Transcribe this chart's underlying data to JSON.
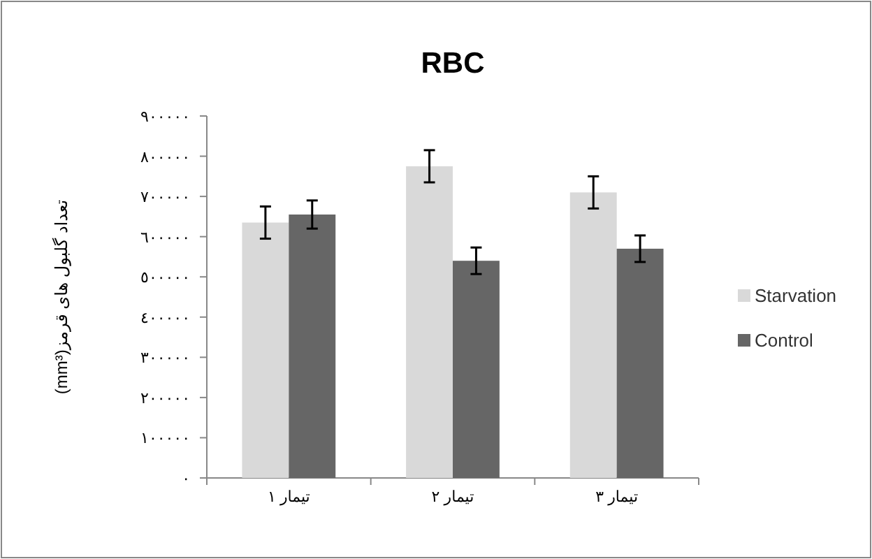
{
  "chart_data": {
    "type": "bar",
    "title": "RBC",
    "ylabel": "تعداد گلبول های قرمز(mm³)",
    "categories": [
      "تیمار ١",
      "تیمار ٢",
      "تیمار ٣"
    ],
    "series": [
      {
        "name": "Starvation",
        "color": "#d9d9d9",
        "values": [
          635000,
          775000,
          710000
        ],
        "errors": [
          40000,
          40000,
          40000
        ]
      },
      {
        "name": "Control",
        "color": "#666666",
        "values": [
          655000,
          540000,
          570000
        ],
        "errors": [
          35000,
          33000,
          33000
        ]
      }
    ],
    "ylim": [
      0,
      900000
    ],
    "yticks": [
      {
        "value": 0,
        "label": "٠"
      },
      {
        "value": 100000,
        "label": "١٠٠٠٠٠"
      },
      {
        "value": 200000,
        "label": "٢٠٠٠٠٠"
      },
      {
        "value": 300000,
        "label": "٣٠٠٠٠٠"
      },
      {
        "value": 400000,
        "label": "٤٠٠٠٠٠"
      },
      {
        "value": 500000,
        "label": "٥٠٠٠٠٠"
      },
      {
        "value": 600000,
        "label": "٦٠٠٠٠٠"
      },
      {
        "value": 700000,
        "label": "٧٠٠٠٠٠"
      },
      {
        "value": 800000,
        "label": "٨٠٠٠٠٠"
      },
      {
        "value": 900000,
        "label": "٩٠٠٠٠٠"
      }
    ],
    "grid": false,
    "legend": "right"
  }
}
